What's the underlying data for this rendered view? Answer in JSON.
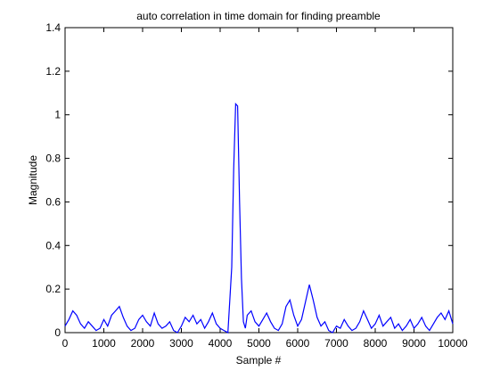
{
  "chart_data": {
    "type": "line",
    "title": "auto correlation in time domain for finding preamble",
    "xlabel": "Sample #",
    "ylabel": "Magnitude",
    "xlim": [
      0,
      10000
    ],
    "ylim": [
      0,
      1.4
    ],
    "xticks": [
      0,
      1000,
      2000,
      3000,
      4000,
      5000,
      6000,
      7000,
      8000,
      9000,
      10000
    ],
    "xtick_labels": [
      "0",
      "1000",
      "2000",
      "3000",
      "4000",
      "5000",
      "6000",
      "7000",
      "8000",
      "9000",
      "10000"
    ],
    "yticks": [
      0,
      0.2,
      0.4,
      0.6,
      0.8,
      1.0,
      1.2,
      1.4
    ],
    "ytick_labels": [
      "0",
      "0.2",
      "0.4",
      "0.6",
      "0.8",
      "1",
      "1.2",
      "1.4"
    ],
    "grid": false,
    "legend": "none",
    "series": [
      {
        "color": "#0000ff",
        "x": [
          0,
          100,
          200,
          300,
          400,
          500,
          600,
          700,
          800,
          900,
          1000,
          1100,
          1200,
          1300,
          1400,
          1500,
          1600,
          1700,
          1800,
          1900,
          2000,
          2100,
          2200,
          2300,
          2400,
          2500,
          2600,
          2700,
          2800,
          2900,
          3000,
          3100,
          3200,
          3300,
          3400,
          3500,
          3600,
          3700,
          3800,
          3900,
          4000,
          4100,
          4200,
          4300,
          4350,
          4400,
          4450,
          4500,
          4550,
          4600,
          4650,
          4700,
          4800,
          4900,
          5000,
          5100,
          5200,
          5300,
          5400,
          5500,
          5600,
          5700,
          5800,
          5900,
          6000,
          6100,
          6200,
          6300,
          6400,
          6500,
          6600,
          6700,
          6800,
          6900,
          7000,
          7100,
          7200,
          7300,
          7400,
          7500,
          7600,
          7700,
          7800,
          7900,
          8000,
          8100,
          8200,
          8300,
          8400,
          8500,
          8600,
          8700,
          8800,
          8900,
          9000,
          9100,
          9200,
          9300,
          9400,
          9500,
          9600,
          9700,
          9800,
          9900,
          10000
        ],
        "y": [
          0.03,
          0.06,
          0.1,
          0.08,
          0.04,
          0.02,
          0.05,
          0.03,
          0.01,
          0.02,
          0.06,
          0.03,
          0.08,
          0.1,
          0.12,
          0.07,
          0.03,
          0.01,
          0.02,
          0.06,
          0.08,
          0.05,
          0.03,
          0.09,
          0.04,
          0.02,
          0.03,
          0.05,
          0.01,
          0.0,
          0.03,
          0.07,
          0.05,
          0.08,
          0.04,
          0.06,
          0.02,
          0.05,
          0.09,
          0.04,
          0.02,
          0.01,
          0.0,
          0.3,
          0.75,
          1.05,
          1.04,
          0.6,
          0.25,
          0.05,
          0.02,
          0.08,
          0.1,
          0.05,
          0.03,
          0.06,
          0.09,
          0.05,
          0.02,
          0.01,
          0.04,
          0.12,
          0.15,
          0.08,
          0.03,
          0.06,
          0.14,
          0.22,
          0.15,
          0.07,
          0.03,
          0.05,
          0.01,
          0.0,
          0.03,
          0.02,
          0.06,
          0.03,
          0.01,
          0.02,
          0.05,
          0.1,
          0.06,
          0.02,
          0.04,
          0.08,
          0.03,
          0.05,
          0.07,
          0.02,
          0.04,
          0.01,
          0.03,
          0.06,
          0.02,
          0.04,
          0.07,
          0.03,
          0.01,
          0.04,
          0.07,
          0.09,
          0.06,
          0.1,
          0.04
        ]
      }
    ]
  }
}
